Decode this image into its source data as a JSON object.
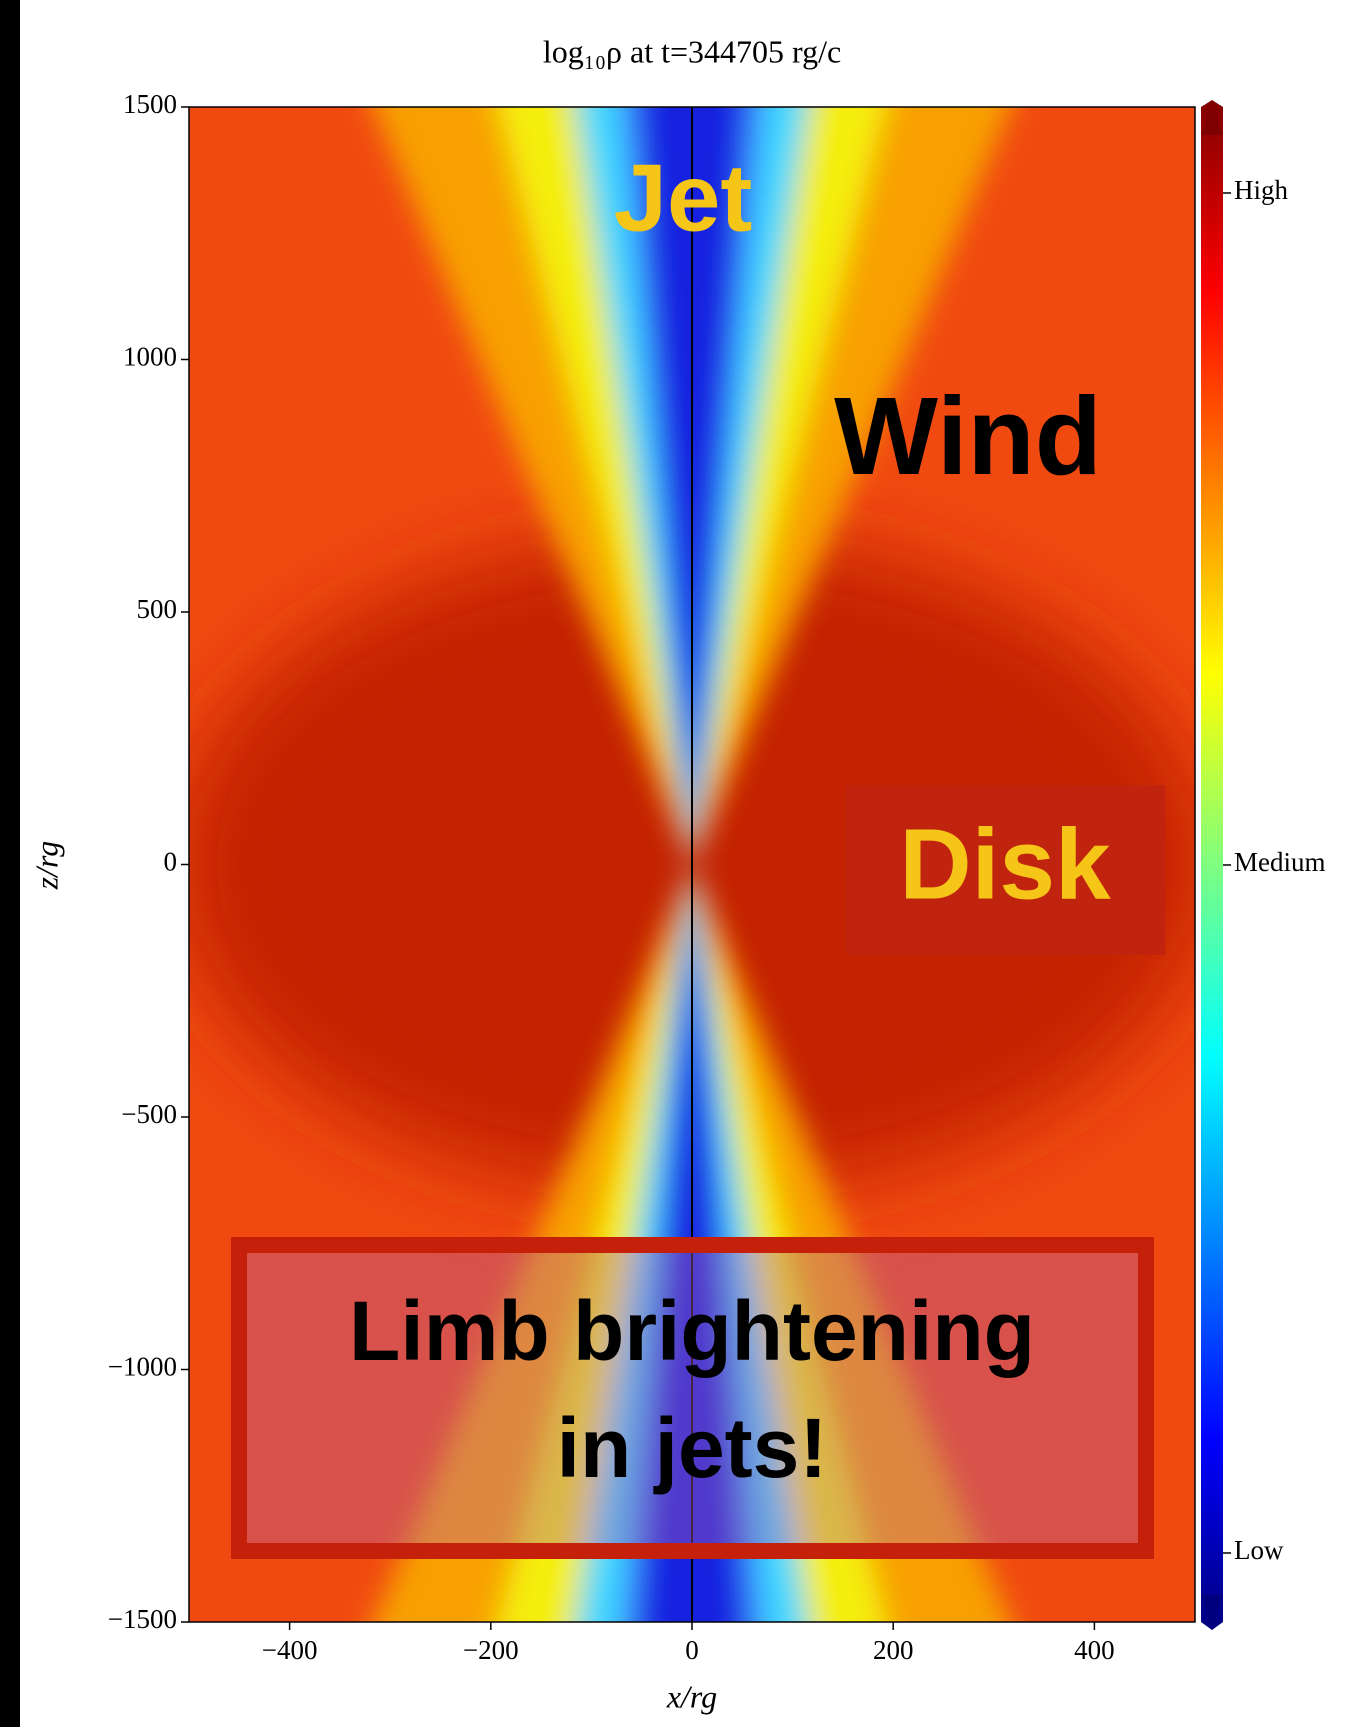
{
  "chart_data": {
    "type": "heatmap",
    "title": "log₁₀ρ at t=344705 rg/c",
    "xlabel": "x/rg",
    "ylabel": "z/rg",
    "xlim": [
      -500,
      500
    ],
    "ylim": [
      -1500,
      1500
    ],
    "xticks": [
      {
        "value": -400,
        "label": "−400"
      },
      {
        "value": -200,
        "label": "−200"
      },
      0,
      200,
      400
    ],
    "yticks": [
      {
        "value": -1500,
        "label": "−1500"
      },
      {
        "value": -1000,
        "label": "−1000"
      },
      {
        "value": -500,
        "label": "−500"
      },
      0,
      500,
      1000,
      1500
    ],
    "colorbar_labels": [
      "High",
      "Medium",
      "Low"
    ],
    "annotations": {
      "jet": "Jet",
      "wind": "Wind",
      "disk": "Disk",
      "limb": [
        "Limb brightening",
        "in jets!"
      ]
    }
  }
}
